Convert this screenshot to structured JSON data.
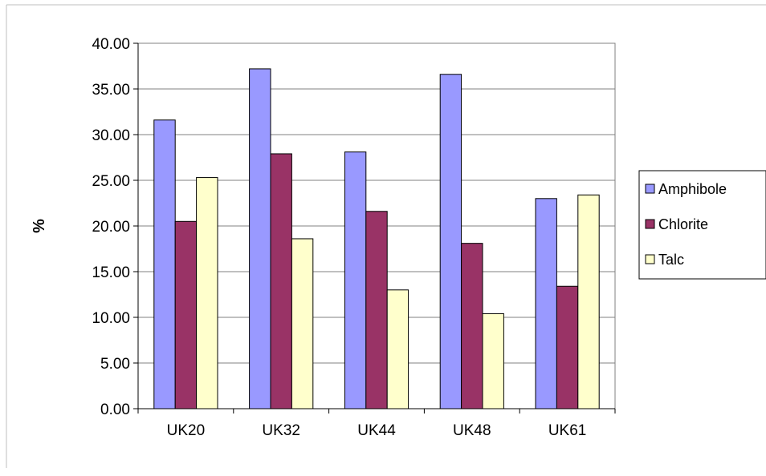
{
  "chart_data": {
    "type": "bar",
    "title": "",
    "xlabel": "",
    "ylabel": "%",
    "categories": [
      "UK20",
      "UK32",
      "UK44",
      "UK48",
      "UK61"
    ],
    "series": [
      {
        "name": "Amphibole",
        "color": "#9999ff",
        "values": [
          31.6,
          37.2,
          28.1,
          36.6,
          23.0
        ]
      },
      {
        "name": "Chlorite",
        "color": "#993366",
        "values": [
          20.5,
          27.9,
          21.6,
          18.1,
          13.4
        ]
      },
      {
        "name": "Talc",
        "color": "#ffffcc",
        "values": [
          25.3,
          18.6,
          13.0,
          10.4,
          23.4
        ]
      }
    ],
    "ylim": [
      0,
      40
    ],
    "yticks": [
      "0.00",
      "5.00",
      "10.00",
      "15.00",
      "20.00",
      "25.00",
      "30.00",
      "35.00",
      "40.00"
    ],
    "grid": true,
    "legend_position": "right"
  }
}
